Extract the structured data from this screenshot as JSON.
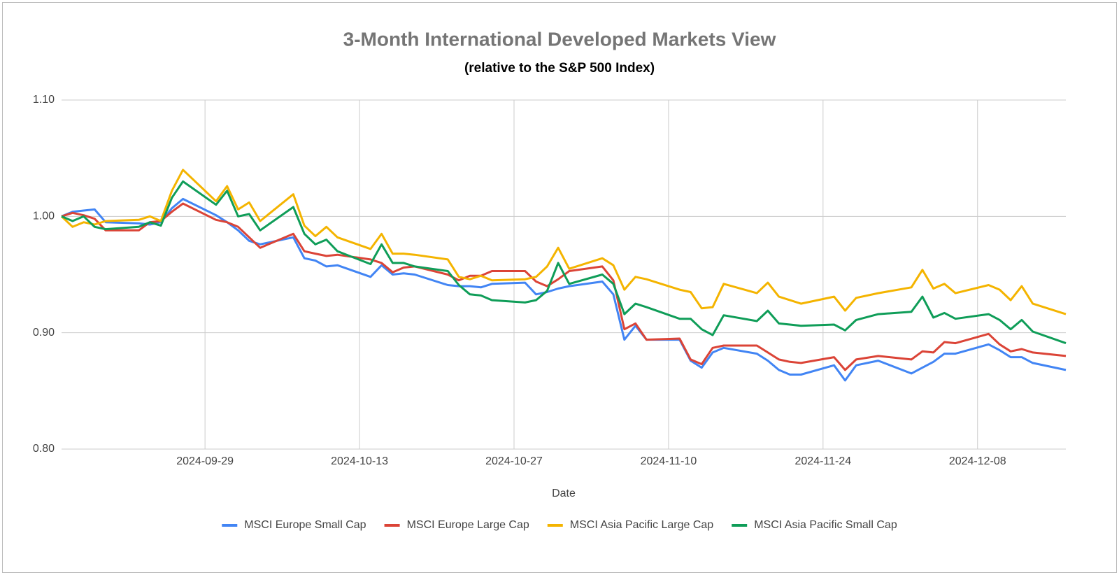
{
  "chart_data": {
    "type": "line",
    "title": "3-Month International Developed Markets View",
    "subtitle": "(relative to the S&P 500 Index)",
    "x_label": "Date",
    "x": [
      "2024-09-16",
      "2024-09-17",
      "2024-09-18",
      "2024-09-19",
      "2024-09-20",
      "2024-09-23",
      "2024-09-24",
      "2024-09-25",
      "2024-09-26",
      "2024-09-27",
      "2024-09-30",
      "2024-10-01",
      "2024-10-02",
      "2024-10-03",
      "2024-10-04",
      "2024-10-07",
      "2024-10-08",
      "2024-10-09",
      "2024-10-10",
      "2024-10-11",
      "2024-10-14",
      "2024-10-15",
      "2024-10-16",
      "2024-10-17",
      "2024-10-18",
      "2024-10-21",
      "2024-10-22",
      "2024-10-23",
      "2024-10-24",
      "2024-10-25",
      "2024-10-28",
      "2024-10-29",
      "2024-10-30",
      "2024-10-31",
      "2024-11-01",
      "2024-11-04",
      "2024-11-05",
      "2024-11-06",
      "2024-11-07",
      "2024-11-08",
      "2024-11-11",
      "2024-11-12",
      "2024-11-13",
      "2024-11-14",
      "2024-11-15",
      "2024-11-18",
      "2024-11-19",
      "2024-11-20",
      "2024-11-21",
      "2024-11-22",
      "2024-11-25",
      "2024-11-26",
      "2024-11-27",
      "2024-11-29",
      "2024-12-02",
      "2024-12-03",
      "2024-12-04",
      "2024-12-05",
      "2024-12-06",
      "2024-12-09",
      "2024-12-10",
      "2024-12-11",
      "2024-12-12",
      "2024-12-13",
      "2024-12-16"
    ],
    "series": [
      {
        "name": "MSCI Europe Small Cap",
        "color": "#4285f4",
        "values": [
          1.0,
          1.004,
          1.005,
          1.006,
          0.995,
          0.994,
          0.993,
          0.995,
          1.007,
          1.015,
          1.001,
          0.995,
          0.988,
          0.979,
          0.976,
          0.982,
          0.964,
          0.962,
          0.957,
          0.958,
          0.948,
          0.958,
          0.95,
          0.951,
          0.95,
          0.941,
          0.94,
          0.94,
          0.939,
          0.942,
          0.943,
          0.933,
          0.935,
          0.938,
          0.94,
          0.944,
          0.933,
          0.894,
          0.906,
          0.894,
          0.894,
          0.876,
          0.87,
          0.883,
          0.887,
          0.882,
          0.876,
          0.868,
          0.864,
          0.864,
          0.872,
          0.859,
          0.872,
          0.876,
          0.865,
          0.87,
          0.875,
          0.882,
          0.882,
          0.89,
          0.885,
          0.879,
          0.879,
          0.874,
          0.868
        ]
      },
      {
        "name": "MSCI Europe Large Cap",
        "color": "#db4437",
        "values": [
          1.0,
          1.003,
          1.001,
          0.998,
          0.988,
          0.988,
          0.995,
          0.996,
          1.004,
          1.011,
          0.997,
          0.995,
          0.991,
          0.982,
          0.973,
          0.985,
          0.97,
          0.968,
          0.966,
          0.967,
          0.963,
          0.96,
          0.952,
          0.956,
          0.957,
          0.95,
          0.945,
          0.949,
          0.949,
          0.953,
          0.953,
          0.944,
          0.94,
          0.946,
          0.953,
          0.957,
          0.945,
          0.903,
          0.908,
          0.894,
          0.895,
          0.877,
          0.873,
          0.887,
          0.889,
          0.889,
          0.883,
          0.877,
          0.875,
          0.874,
          0.879,
          0.868,
          0.877,
          0.88,
          0.877,
          0.884,
          0.883,
          0.892,
          0.891,
          0.899,
          0.89,
          0.884,
          0.886,
          0.883,
          0.88
        ]
      },
      {
        "name": "MSCI Asia Pacific Large Cap",
        "color": "#f4b400",
        "values": [
          1.0,
          0.991,
          0.995,
          0.993,
          0.996,
          0.997,
          1.0,
          0.996,
          1.022,
          1.04,
          1.013,
          1.026,
          1.006,
          1.012,
          0.996,
          1.019,
          0.992,
          0.983,
          0.991,
          0.982,
          0.972,
          0.985,
          0.968,
          0.968,
          0.967,
          0.963,
          0.948,
          0.946,
          0.949,
          0.945,
          0.946,
          0.948,
          0.957,
          0.973,
          0.955,
          0.964,
          0.958,
          0.937,
          0.948,
          0.946,
          0.937,
          0.935,
          0.921,
          0.922,
          0.942,
          0.934,
          0.943,
          0.931,
          0.928,
          0.925,
          0.931,
          0.919,
          0.93,
          0.934,
          0.939,
          0.954,
          0.938,
          0.942,
          0.934,
          0.941,
          0.937,
          0.928,
          0.94,
          0.925,
          0.916
        ]
      },
      {
        "name": "MSCI Asia Pacific Small Cap",
        "color": "#0f9d58",
        "values": [
          1.0,
          0.996,
          1.0,
          0.991,
          0.989,
          0.991,
          0.995,
          0.992,
          1.016,
          1.03,
          1.01,
          1.022,
          1.0,
          1.002,
          0.988,
          1.008,
          0.985,
          0.976,
          0.98,
          0.97,
          0.959,
          0.976,
          0.96,
          0.96,
          0.957,
          0.953,
          0.941,
          0.933,
          0.932,
          0.928,
          0.926,
          0.928,
          0.936,
          0.96,
          0.942,
          0.95,
          0.942,
          0.916,
          0.925,
          0.922,
          0.912,
          0.912,
          0.903,
          0.898,
          0.915,
          0.91,
          0.919,
          0.908,
          0.907,
          0.906,
          0.907,
          0.902,
          0.911,
          0.916,
          0.918,
          0.931,
          0.913,
          0.917,
          0.912,
          0.916,
          0.911,
          0.903,
          0.911,
          0.901,
          0.891
        ]
      }
    ],
    "xlim": [
      "2024-09-16",
      "2024-12-16"
    ],
    "xticks": [
      "2024-09-29",
      "2024-10-13",
      "2024-10-27",
      "2024-11-10",
      "2024-11-24",
      "2024-12-08"
    ],
    "ylim": [
      0.8,
      1.1
    ],
    "yticks": [
      {
        "value": 0.8,
        "label": "0.80"
      },
      {
        "value": 0.9,
        "label": "0.90"
      },
      {
        "value": 1.0,
        "label": "1.00"
      },
      {
        "value": 1.1,
        "label": "1.10"
      }
    ],
    "grid": true,
    "legend": "bottom"
  }
}
